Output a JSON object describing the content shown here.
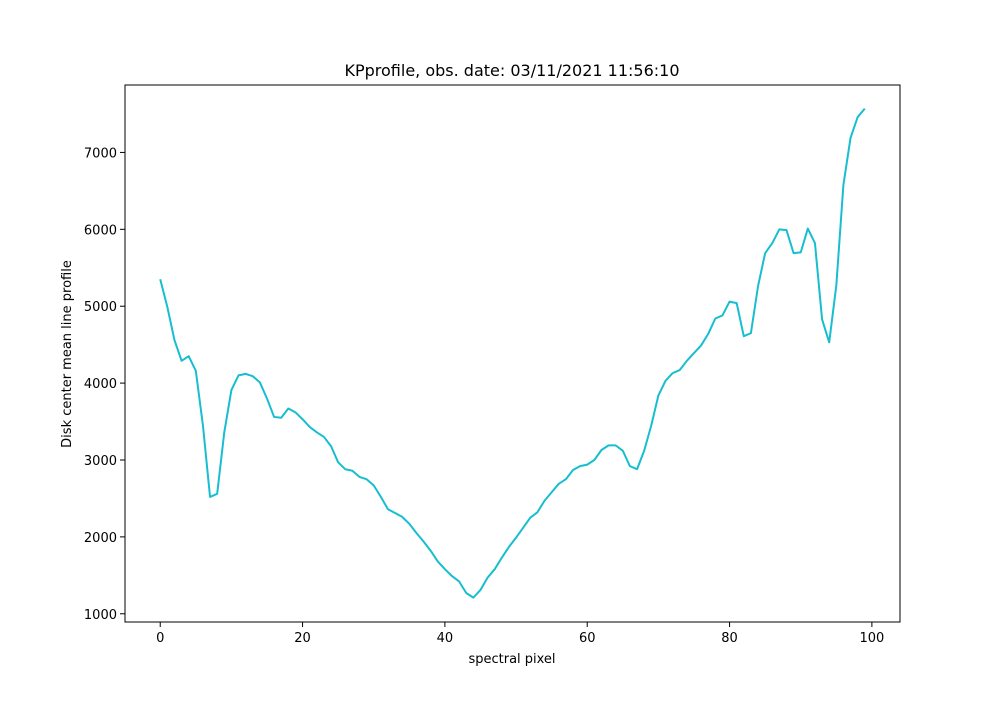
{
  "chart_data": {
    "type": "line",
    "title": "KPprofile, obs. date: 03/11/2021 11:56:10",
    "xlabel": "spectral pixel",
    "ylabel": "Disk center mean line profile",
    "color": "#17becf",
    "x": [
      0,
      1,
      2,
      3,
      4,
      5,
      6,
      7,
      8,
      9,
      10,
      11,
      12,
      13,
      14,
      15,
      16,
      17,
      18,
      19,
      20,
      21,
      22,
      23,
      24,
      25,
      26,
      27,
      28,
      29,
      30,
      31,
      32,
      33,
      34,
      35,
      36,
      37,
      38,
      39,
      40,
      41,
      42,
      43,
      44,
      45,
      46,
      47,
      48,
      49,
      50,
      51,
      52,
      53,
      54,
      55,
      56,
      57,
      58,
      59,
      60,
      61,
      62,
      63,
      64,
      65,
      66,
      67,
      68,
      69,
      70,
      71,
      72,
      73,
      74,
      75,
      76,
      77,
      78,
      79,
      80,
      81,
      82,
      83,
      84,
      85,
      86,
      87,
      88,
      89,
      90,
      91,
      92,
      93,
      94,
      95,
      96,
      97,
      98,
      99
    ],
    "values": [
      5350,
      4990,
      4560,
      4290,
      4350,
      4160,
      3450,
      2520,
      2560,
      3360,
      3910,
      4100,
      4120,
      4090,
      4010,
      3800,
      3560,
      3550,
      3670,
      3620,
      3530,
      3430,
      3360,
      3300,
      3180,
      2970,
      2880,
      2860,
      2780,
      2750,
      2670,
      2520,
      2360,
      2310,
      2260,
      2170,
      2050,
      1940,
      1820,
      1680,
      1580,
      1490,
      1420,
      1270,
      1210,
      1310,
      1470,
      1580,
      1730,
      1870,
      1990,
      2120,
      2250,
      2320,
      2470,
      2580,
      2690,
      2750,
      2870,
      2920,
      2940,
      3000,
      3130,
      3190,
      3190,
      3120,
      2920,
      2880,
      3120,
      3450,
      3840,
      4030,
      4130,
      4170,
      4290,
      4390,
      4490,
      4640,
      4840,
      4880,
      5060,
      5040,
      4610,
      4650,
      5260,
      5690,
      5820,
      6000,
      5990,
      5690,
      5700,
      6010,
      5820,
      4830,
      4530,
      5270,
      6580,
      7190,
      7460,
      7570
    ],
    "xlim": [
      -4.95,
      103.95
    ],
    "ylim": [
      893,
      7877
    ],
    "xticks": [
      0,
      20,
      40,
      60,
      80,
      100
    ],
    "yticks": [
      1000,
      2000,
      3000,
      4000,
      5000,
      6000,
      7000
    ],
    "grid": false
  }
}
